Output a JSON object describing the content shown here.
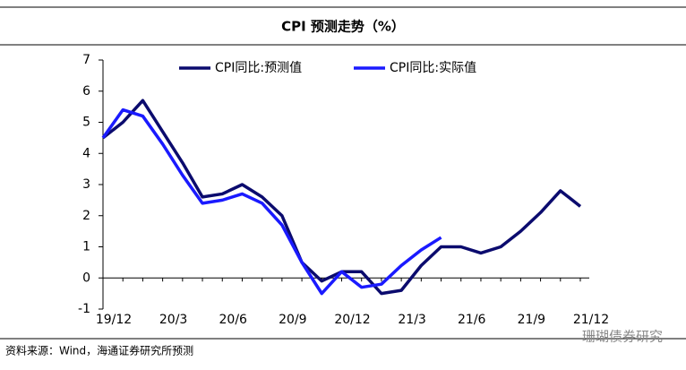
{
  "chart_data": {
    "type": "line",
    "title": "CPI 预测走势（%）",
    "categories": [
      "19/12",
      null,
      null,
      "20/3",
      null,
      null,
      "20/6",
      null,
      null,
      "20/9",
      null,
      null,
      "20/12",
      null,
      null,
      "21/3",
      null,
      null,
      "21/6",
      null,
      null,
      "21/9",
      null,
      null,
      "21/12"
    ],
    "series": [
      {
        "name": "CPI同比:预测值",
        "color": "#0b0b6e",
        "values": [
          4.5,
          5.0,
          5.7,
          4.7,
          3.7,
          2.6,
          2.7,
          3.0,
          2.6,
          2.0,
          0.5,
          -0.1,
          0.2,
          0.2,
          -0.5,
          -0.4,
          0.4,
          1.0,
          1.0,
          0.8,
          1.0,
          1.5,
          2.1,
          2.8,
          2.3
        ]
      },
      {
        "name": "CPI同比:实际值",
        "color": "#1a1aff",
        "values": [
          4.5,
          5.4,
          5.2,
          4.3,
          3.3,
          2.4,
          2.5,
          2.7,
          2.4,
          1.7,
          0.5,
          -0.5,
          0.2,
          -0.3,
          -0.2,
          0.4,
          0.9,
          1.3,
          null,
          null,
          null,
          null,
          null,
          null,
          null
        ]
      }
    ],
    "ylim": [
      -1,
      7
    ],
    "yticks": [
      -1,
      0,
      1,
      2,
      3,
      4,
      5,
      6,
      7
    ],
    "source": "资料来源：Wind，海通证券研究所预测",
    "watermark": "珊瑚债券研究"
  }
}
